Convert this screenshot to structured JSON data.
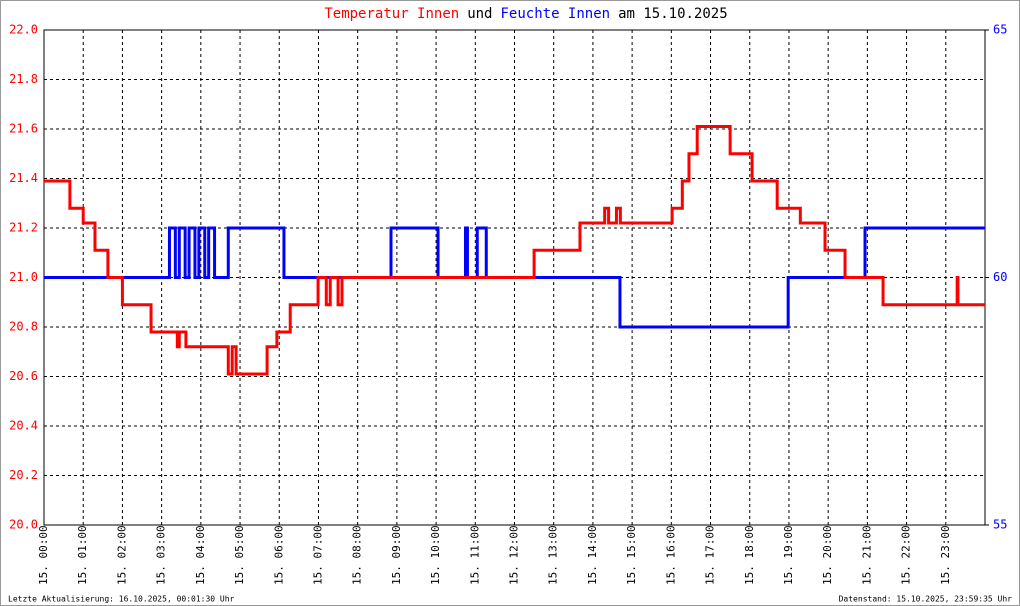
{
  "chart_data": {
    "type": "line",
    "title_connector": "und",
    "title_suffix": "am 15.10.2025",
    "footer_left": "Letzte Aktualisierung: 16.10.2025, 00:01:30 Uhr",
    "footer_right": "Datenstand: 15.10.2025, 23:59:35 Uhr",
    "grid": true,
    "xlim": [
      0,
      24
    ],
    "xticks": [
      {
        "value": 0,
        "label": "15. 00:00"
      },
      {
        "value": 1,
        "label": "15. 01:00"
      },
      {
        "value": 2,
        "label": "15. 02:00"
      },
      {
        "value": 3,
        "label": "15. 03:00"
      },
      {
        "value": 4,
        "label": "15. 04:00"
      },
      {
        "value": 5,
        "label": "15. 05:00"
      },
      {
        "value": 6,
        "label": "15. 06:00"
      },
      {
        "value": 7,
        "label": "15. 07:00"
      },
      {
        "value": 8,
        "label": "15. 08:00"
      },
      {
        "value": 9,
        "label": "15. 09:00"
      },
      {
        "value": 10,
        "label": "15. 10:00"
      },
      {
        "value": 11,
        "label": "15. 11:00"
      },
      {
        "value": 12,
        "label": "15. 12:00"
      },
      {
        "value": 13,
        "label": "15. 13:00"
      },
      {
        "value": 14,
        "label": "15. 14:00"
      },
      {
        "value": 15,
        "label": "15. 15:00"
      },
      {
        "value": 16,
        "label": "15. 16:00"
      },
      {
        "value": 17,
        "label": "15. 17:00"
      },
      {
        "value": 18,
        "label": "15. 18:00"
      },
      {
        "value": 19,
        "label": "15. 19:00"
      },
      {
        "value": 20,
        "label": "15. 20:00"
      },
      {
        "value": 21,
        "label": "15. 21:00"
      },
      {
        "value": 22,
        "label": "15. 22:00"
      },
      {
        "value": 23,
        "label": "15. 23:00"
      }
    ],
    "ylim": [
      20,
      22
    ],
    "yticks": [
      {
        "value": 20,
        "label": "20.0"
      },
      20.2,
      20.4,
      20.6,
      20.8,
      {
        "value": 21,
        "label": "21.0"
      },
      21.2,
      21.4,
      21.6,
      21.8,
      {
        "value": 22,
        "label": "22.0"
      }
    ],
    "y2lim": [
      55,
      65
    ],
    "y2ticks": [
      55,
      60,
      65
    ],
    "series": [
      {
        "name": "Temperatur Innen",
        "color": "#ff0000",
        "x": [
          0,
          0.66,
          0.66,
          1.0,
          1.0,
          1.3,
          1.3,
          1.63,
          1.63,
          2.0,
          2.0,
          2.73,
          2.73,
          3.4,
          3.4,
          3.45,
          3.45,
          3.62,
          3.62,
          4.7,
          4.7,
          4.8,
          4.8,
          4.9,
          4.9,
          5.69,
          5.69,
          5.94,
          5.94,
          6.28,
          6.28,
          6.99,
          6.99,
          7.2,
          7.2,
          7.3,
          7.3,
          7.5,
          7.5,
          7.6,
          7.6,
          12.5,
          12.5,
          13.67,
          13.67,
          14.3,
          14.3,
          14.4,
          14.4,
          14.6,
          14.6,
          14.7,
          14.7,
          16.02,
          16.02,
          16.28,
          16.28,
          16.45,
          16.45,
          16.66,
          16.66,
          17.5,
          17.5,
          18.06,
          18.06,
          18.7,
          18.7,
          19.29,
          19.29,
          19.92,
          19.92,
          20.43,
          20.43,
          21.4,
          21.4,
          23.29,
          23.29,
          23.31,
          23.31,
          24
        ],
        "values": [
          21.39,
          21.39,
          21.28,
          21.28,
          21.22,
          21.22,
          21.11,
          21.11,
          21.0,
          21.0,
          20.89,
          20.89,
          20.78,
          20.78,
          20.72,
          20.72,
          20.78,
          20.78,
          20.72,
          20.72,
          20.61,
          20.61,
          20.72,
          20.72,
          20.61,
          20.61,
          20.72,
          20.72,
          20.78,
          20.78,
          20.89,
          20.89,
          21.0,
          21.0,
          20.89,
          20.89,
          21.0,
          21.0,
          20.89,
          20.89,
          21.0,
          21.0,
          21.11,
          21.11,
          21.22,
          21.22,
          21.28,
          21.28,
          21.22,
          21.22,
          21.28,
          21.28,
          21.22,
          21.22,
          21.28,
          21.28,
          21.39,
          21.39,
          21.5,
          21.5,
          21.61,
          21.61,
          21.5,
          21.5,
          21.39,
          21.39,
          21.28,
          21.28,
          21.22,
          21.22,
          21.11,
          21.11,
          21.0,
          21.0,
          20.89,
          20.89,
          21.0,
          21.0,
          20.89,
          20.89
        ]
      },
      {
        "name": "Feuchte Innen",
        "color": "#0000ff",
        "axis": "y2",
        "x": [
          0,
          3.2,
          3.2,
          3.35,
          3.35,
          3.45,
          3.45,
          3.6,
          3.6,
          3.7,
          3.7,
          3.85,
          3.85,
          3.95,
          3.95,
          4.1,
          4.1,
          4.2,
          4.2,
          4.35,
          4.35,
          4.7,
          4.7,
          6.12,
          6.12,
          8.85,
          8.85,
          10.05,
          10.05,
          10.75,
          10.75,
          10.8,
          10.8,
          11.05,
          11.05,
          11.28,
          11.28,
          14.69,
          14.69,
          18.98,
          18.98,
          20.94,
          20.94,
          24
        ],
        "values": [
          60,
          60,
          61,
          61,
          60,
          60,
          61,
          61,
          60,
          60,
          61,
          61,
          60,
          60,
          61,
          61,
          60,
          60,
          61,
          61,
          60,
          60,
          61,
          61,
          60,
          60,
          61,
          61,
          60,
          60,
          61,
          61,
          60,
          60,
          61,
          61,
          60,
          60,
          59,
          59,
          60,
          60,
          61,
          61
        ]
      }
    ]
  }
}
